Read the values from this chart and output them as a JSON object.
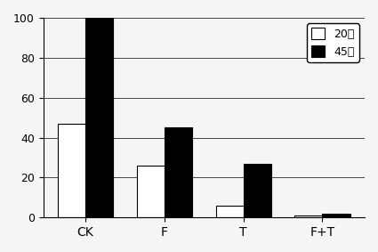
{
  "categories": [
    "CK",
    "F",
    "T",
    "F+T"
  ],
  "series": [
    {
      "label": "□ 20天",
      "values": [
        47,
        26,
        6,
        1
      ],
      "color": "#ffffff",
      "edgecolor": "#000000"
    },
    {
      "label": "■ 45天",
      "values": [
        100,
        45,
        27,
        2
      ],
      "color": "#000000",
      "edgecolor": "#000000"
    }
  ],
  "ylim": [
    0,
    100
  ],
  "yticks": [
    0,
    20,
    40,
    60,
    80,
    100
  ],
  "xlabel": "",
  "ylabel": "",
  "title": "",
  "legend_labels": [
    "20天",
    "45天"
  ],
  "background_color": "#f0f0f0",
  "bar_width": 0.35,
  "grid": true
}
